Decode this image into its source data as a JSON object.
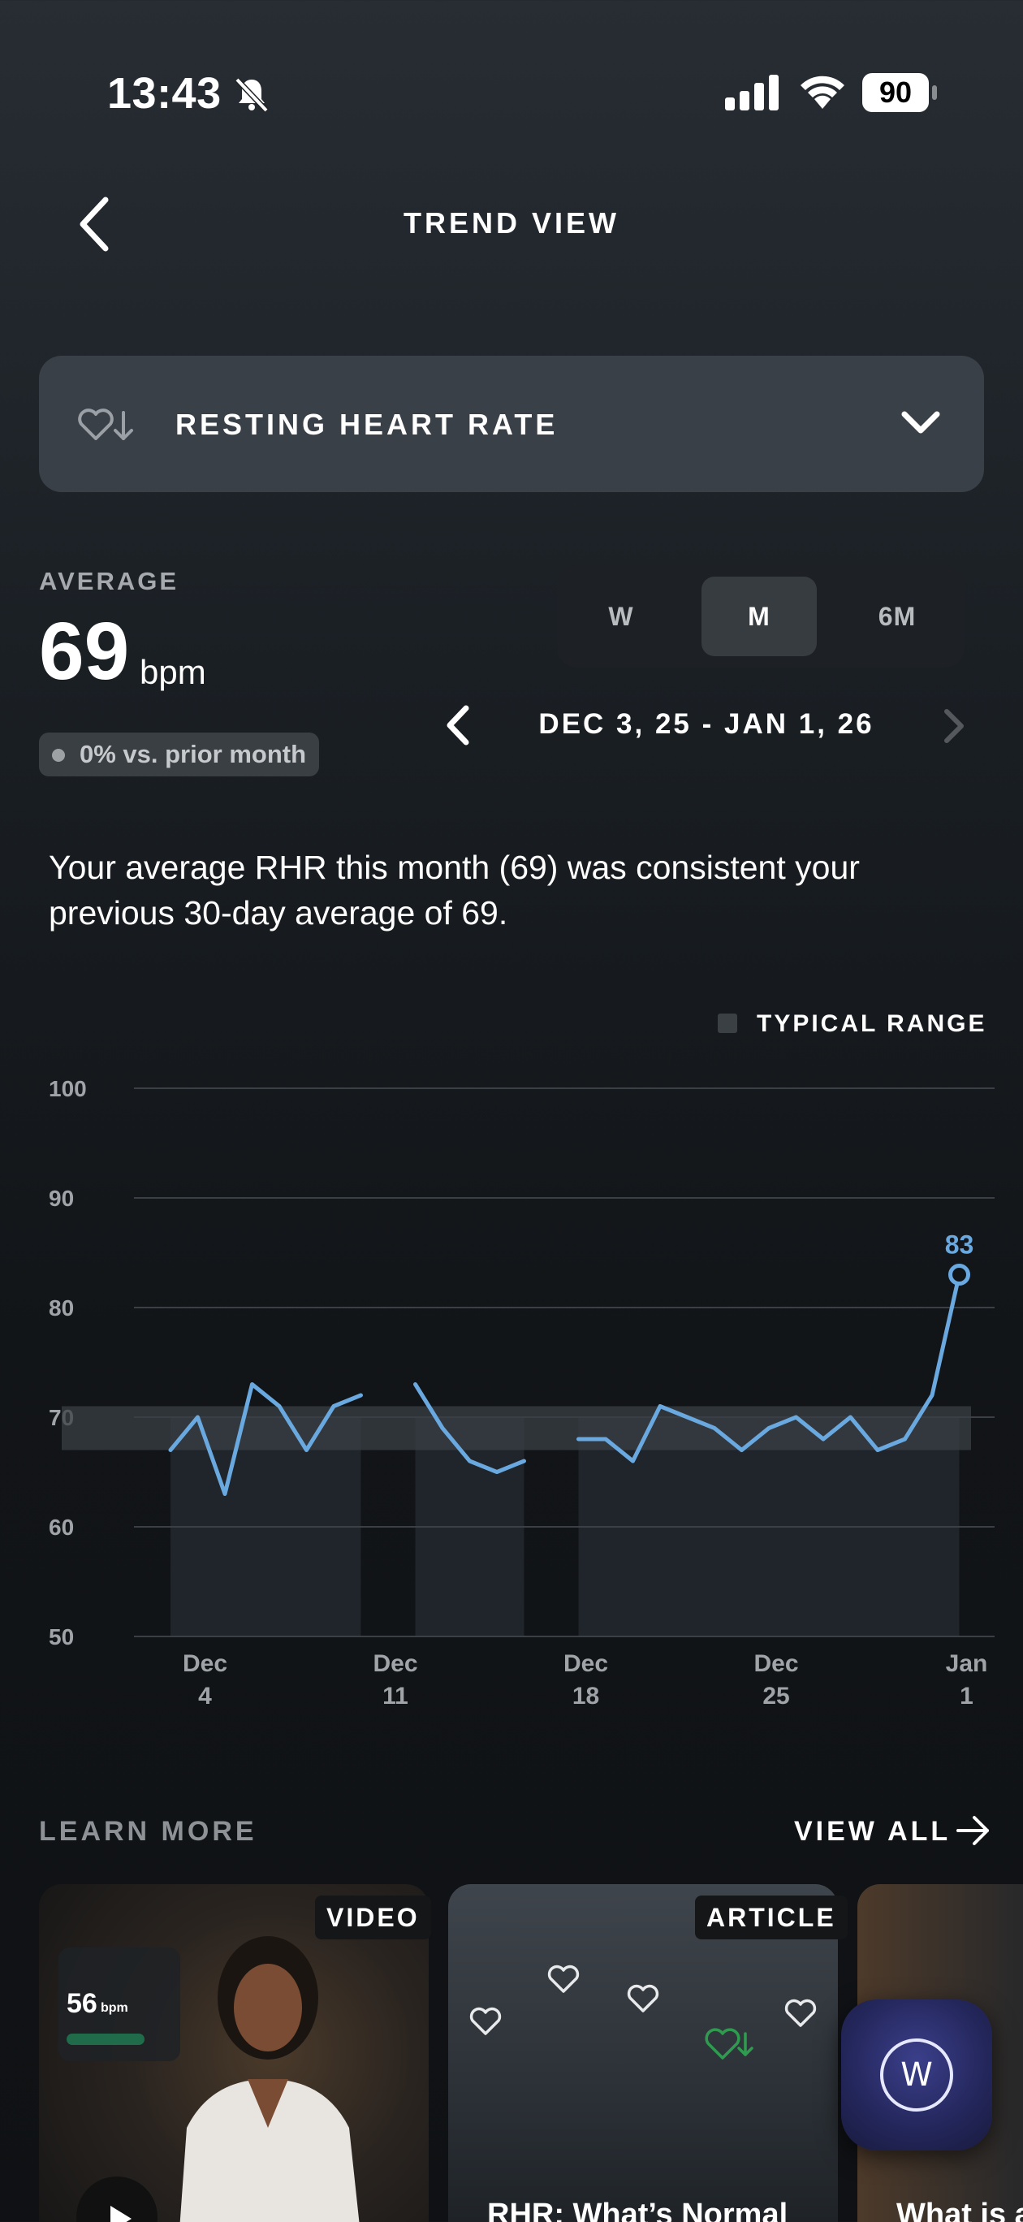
{
  "status_bar": {
    "time": "13:43",
    "battery": "90"
  },
  "header": {
    "title": "TREND VIEW"
  },
  "metric": {
    "label": "RESTING HEART RATE"
  },
  "average": {
    "label": "AVERAGE",
    "value": "69",
    "unit": "bpm",
    "change": "0% vs. prior month"
  },
  "period": {
    "options": [
      "W",
      "M",
      "6M"
    ],
    "selected": "M",
    "date_range": "DEC 3, 25 - JAN 1, 26"
  },
  "summary": "Your average RHR this month (69) was consistent your previous 30-day average of 69.",
  "legend": {
    "typical_range": "TYPICAL RANGE"
  },
  "chart_data": {
    "type": "line",
    "ylim": [
      50,
      100
    ],
    "y_ticks": [
      "100",
      "90",
      "80",
      "70",
      "60",
      "50"
    ],
    "x_ticks": [
      {
        "day": 1,
        "line1": "Dec",
        "line2": "4"
      },
      {
        "day": 8,
        "line1": "Dec",
        "line2": "11"
      },
      {
        "day": 15,
        "line1": "Dec",
        "line2": "18"
      },
      {
        "day": 22,
        "line1": "Dec",
        "line2": "25"
      },
      {
        "day": 29,
        "line1": "Jan",
        "line2": "1"
      }
    ],
    "typical_range": [
      67,
      71
    ],
    "segments": [
      {
        "days": [
          0,
          1,
          2,
          3,
          4,
          5,
          6,
          7
        ],
        "values": [
          67,
          70,
          63,
          73,
          71,
          67,
          71,
          72
        ]
      },
      {
        "days": [
          9,
          10,
          11,
          12,
          13
        ],
        "values": [
          73,
          69,
          66,
          65,
          66
        ]
      },
      {
        "days": [
          15,
          16,
          17,
          18,
          19,
          20,
          21,
          22,
          23,
          24,
          25,
          26,
          27,
          28,
          29
        ],
        "values": [
          68,
          68,
          66,
          71,
          70,
          69,
          67,
          69,
          70,
          68,
          70,
          67,
          68,
          72,
          83
        ]
      }
    ],
    "highlight": {
      "day": 29,
      "value": 83,
      "label": "83"
    },
    "colors": {
      "line": "#6aa8e0",
      "band": "#3a3f44",
      "grid": "#3b4046"
    }
  },
  "learn_more": {
    "title": "LEARN MORE",
    "view_all": "VIEW ALL",
    "cards": [
      {
        "tag": "VIDEO",
        "title": "",
        "mini_value": "56",
        "mini_unit": "bpm"
      },
      {
        "tag": "ARTICLE",
        "title": "RHR: What’s Normal"
      },
      {
        "tag": "",
        "title": "What is a"
      }
    ]
  }
}
